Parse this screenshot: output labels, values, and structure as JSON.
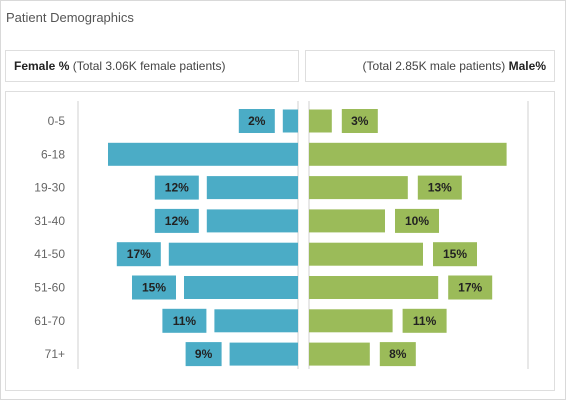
{
  "widget": {
    "title": "Patient Demographics"
  },
  "header": {
    "female_label": "Female %",
    "female_total": "(Total 3.06K female patients)",
    "male_total": "(Total 2.85K male patients)",
    "male_label": "Male%"
  },
  "colors": {
    "female": "#4bacc6",
    "male": "#9bbb59",
    "label_box_female": "#4bacc6",
    "label_box_male": "#9bbb59"
  },
  "chart_data": {
    "type": "bar",
    "orientation": "horizontal-butterfly",
    "categories": [
      "0-5",
      "6-18",
      "19-30",
      "31-40",
      "41-50",
      "51-60",
      "61-70",
      "71+"
    ],
    "series": [
      {
        "name": "Female %",
        "values": [
          2,
          25,
          12,
          12,
          17,
          15,
          11,
          9
        ],
        "labels": [
          "2%",
          "",
          "12%",
          "12%",
          "17%",
          "15%",
          "11%",
          "9%"
        ]
      },
      {
        "name": "Male%",
        "values": [
          3,
          26,
          13,
          10,
          15,
          17,
          11,
          8
        ],
        "labels": [
          "3%",
          "",
          "13%",
          "10%",
          "15%",
          "17%",
          "11%",
          "8%"
        ]
      }
    ],
    "grid": false,
    "legend": "none"
  }
}
